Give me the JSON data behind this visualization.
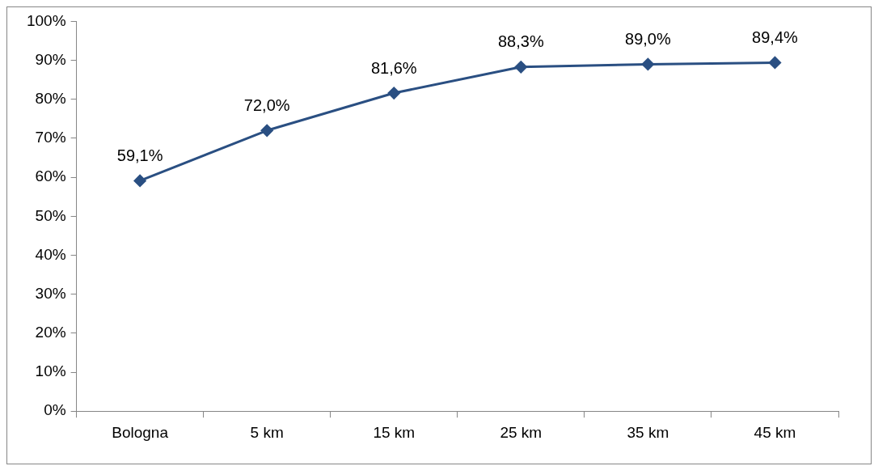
{
  "chart_data": {
    "type": "line",
    "categories": [
      "Bologna",
      "5 km",
      "15 km",
      "25 km",
      "35 km",
      "45 km"
    ],
    "series": [
      {
        "color": "#2a4f82",
        "values": [
          59.1,
          72.0,
          81.6,
          88.3,
          89.0,
          89.4
        ],
        "value_labels": [
          "59,1%",
          "72,0%",
          "81,6%",
          "88,3%",
          "89,0%",
          "89,4%"
        ]
      }
    ],
    "ylim": [
      0,
      100
    ],
    "yticks": [
      {
        "value": 0,
        "label": "0%"
      },
      {
        "value": 10,
        "label": "10%"
      },
      {
        "value": 20,
        "label": "20%"
      },
      {
        "value": 30,
        "label": "30%"
      },
      {
        "value": 40,
        "label": "40%"
      },
      {
        "value": 50,
        "label": "50%"
      },
      {
        "value": 60,
        "label": "60%"
      },
      {
        "value": 70,
        "label": "70%"
      },
      {
        "value": 80,
        "label": "80%"
      },
      {
        "value": 90,
        "label": "90%"
      },
      {
        "value": 100,
        "label": "100%"
      }
    ],
    "marker": "diamond",
    "line_style": "solid",
    "legend": false
  }
}
